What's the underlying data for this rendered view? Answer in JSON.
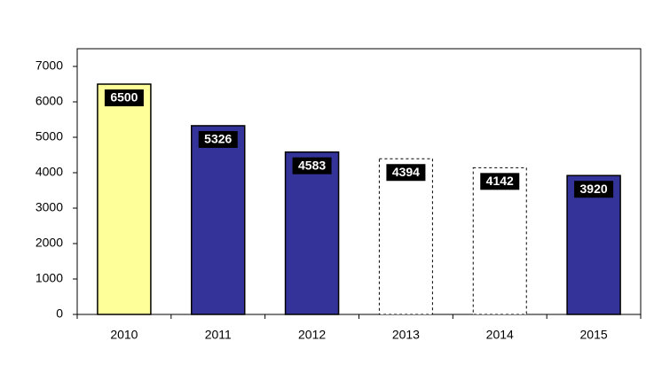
{
  "chart_data": {
    "type": "bar",
    "categories": [
      "2010",
      "2011",
      "2012",
      "2013",
      "2014",
      "2015"
    ],
    "values": [
      6500,
      5326,
      4583,
      4394,
      4142,
      3920
    ],
    "colors": [
      "#ffff99",
      "#333399",
      "#333399",
      "#ffffff",
      "#ffffff",
      "#333399"
    ],
    "border_styles": [
      "solid",
      "solid",
      "solid",
      "dotted",
      "dotted",
      "solid"
    ],
    "ylim": [
      0,
      7500
    ],
    "yticks": [
      0,
      1000,
      2000,
      3000,
      4000,
      5000,
      6000,
      7000
    ]
  }
}
